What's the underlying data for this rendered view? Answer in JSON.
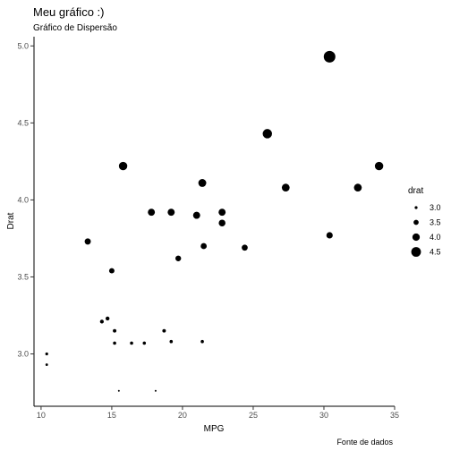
{
  "chart_data": {
    "type": "scatter",
    "title": "Meu gráfico :)",
    "subtitle": "Gráfico de Dispersão",
    "xlabel": "MPG",
    "ylabel": "Drat",
    "caption": "Fonte de dados",
    "xlim": [
      9.5,
      35
    ],
    "ylim": [
      2.66,
      5.06
    ],
    "xticks": [
      10,
      15,
      20,
      25,
      30,
      35
    ],
    "yticks": [
      3.0,
      3.5,
      4.0,
      4.5,
      5.0
    ],
    "xtick_labels": [
      "10",
      "15",
      "20",
      "25",
      "30",
      "35"
    ],
    "ytick_labels": [
      "3.0",
      "3.5",
      "4.0",
      "4.5",
      "5.0"
    ],
    "grid": false,
    "point_color": "#000000",
    "size_variable": "drat",
    "legend": {
      "title": "drat",
      "position": "right",
      "entries": [
        {
          "label": "3.0",
          "value": 3.0
        },
        {
          "label": "3.5",
          "value": 3.5
        },
        {
          "label": "4.0",
          "value": 4.0
        },
        {
          "label": "4.5",
          "value": 4.5
        }
      ]
    },
    "points": [
      {
        "x": 21.0,
        "y": 3.9
      },
      {
        "x": 21.0,
        "y": 3.9
      },
      {
        "x": 22.8,
        "y": 3.85
      },
      {
        "x": 21.4,
        "y": 3.08
      },
      {
        "x": 18.7,
        "y": 3.15
      },
      {
        "x": 18.1,
        "y": 2.76
      },
      {
        "x": 14.3,
        "y": 3.21
      },
      {
        "x": 24.4,
        "y": 3.69
      },
      {
        "x": 22.8,
        "y": 3.92
      },
      {
        "x": 19.2,
        "y": 3.92
      },
      {
        "x": 17.8,
        "y": 3.92
      },
      {
        "x": 16.4,
        "y": 3.07
      },
      {
        "x": 17.3,
        "y": 3.07
      },
      {
        "x": 15.2,
        "y": 3.07
      },
      {
        "x": 10.4,
        "y": 2.93
      },
      {
        "x": 10.4,
        "y": 3.0
      },
      {
        "x": 14.7,
        "y": 3.23
      },
      {
        "x": 32.4,
        "y": 4.08
      },
      {
        "x": 30.4,
        "y": 4.93
      },
      {
        "x": 33.9,
        "y": 4.22
      },
      {
        "x": 21.5,
        "y": 3.7
      },
      {
        "x": 15.5,
        "y": 2.76
      },
      {
        "x": 15.2,
        "y": 3.15
      },
      {
        "x": 13.3,
        "y": 3.73
      },
      {
        "x": 19.2,
        "y": 3.08
      },
      {
        "x": 27.3,
        "y": 4.08
      },
      {
        "x": 26.0,
        "y": 4.43
      },
      {
        "x": 30.4,
        "y": 3.77
      },
      {
        "x": 15.8,
        "y": 4.22
      },
      {
        "x": 19.7,
        "y": 3.62
      },
      {
        "x": 15.0,
        "y": 3.54
      },
      {
        "x": 21.4,
        "y": 4.11
      }
    ]
  }
}
